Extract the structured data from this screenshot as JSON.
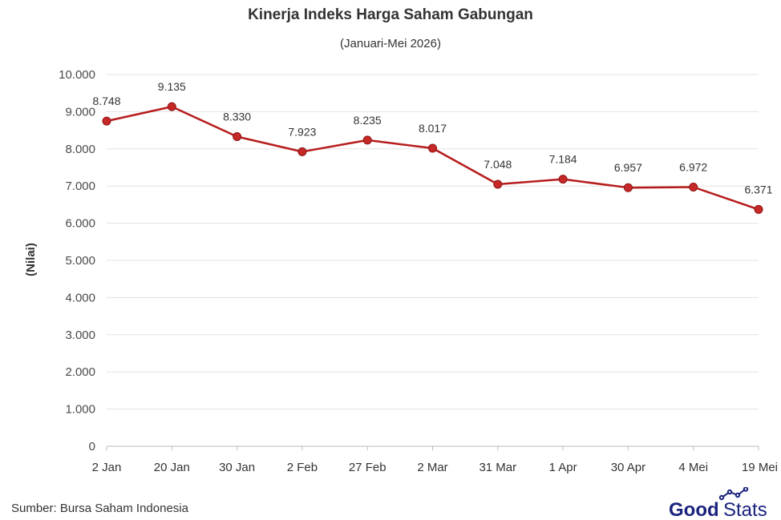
{
  "chart_data": {
    "type": "line",
    "title": "Kinerja Indeks Harga Saham Gabungan",
    "subtitle": "(Januari-Mei 2026)",
    "xlabel": "",
    "ylabel": "(Nilai)",
    "categories": [
      "2 Jan",
      "20 Jan",
      "30 Jan",
      "2 Feb",
      "27 Feb",
      "2 Mar",
      "31 Mar",
      "1 Apr",
      "30 Apr",
      "4 Mei",
      "19 Mei"
    ],
    "values": [
      8748,
      9135,
      8330,
      7923,
      8235,
      8017,
      7048,
      7184,
      6957,
      6972,
      6371
    ],
    "value_labels": [
      "8.748",
      "9.135",
      "8.330",
      "7.923",
      "8.235",
      "8.017",
      "7.048",
      "7.184",
      "6.957",
      "6.972",
      "6.371"
    ],
    "ylim": [
      0,
      10000
    ],
    "yticks": [
      0,
      1000,
      2000,
      3000,
      4000,
      5000,
      6000,
      7000,
      8000,
      9000,
      10000
    ],
    "ytick_labels": [
      "0",
      "1.000",
      "2.000",
      "3.000",
      "4.000",
      "5.000",
      "6.000",
      "7.000",
      "8.000",
      "9.000",
      "10.000"
    ],
    "grid": true,
    "line_color": "#b71c1c",
    "marker_color": "#c62828"
  },
  "footer": {
    "source": "Sumber: Bursa Saham Indonesia",
    "logo_good": "Good",
    "logo_stats": "Stats",
    "logo_color": "#1a237e"
  }
}
